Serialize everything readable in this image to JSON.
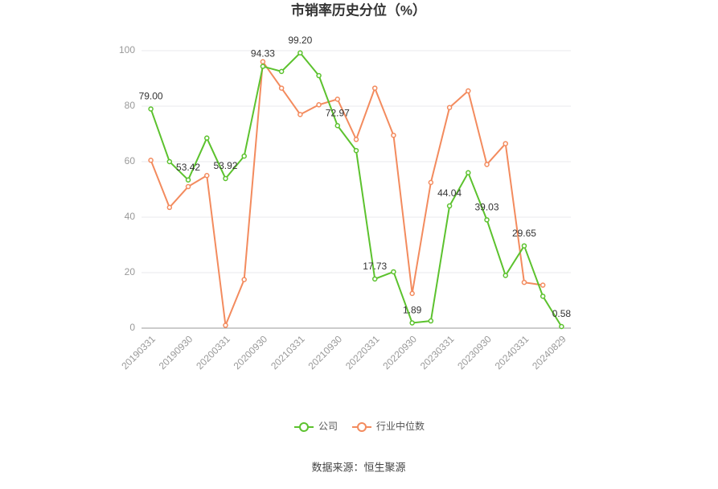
{
  "chart_data": {
    "type": "line",
    "title": "市销率历史分位（%）",
    "categories": [
      "20190331",
      null,
      "20190930",
      null,
      "20200331",
      null,
      "20200930",
      null,
      "20210331",
      null,
      "20210930",
      null,
      "20220331",
      null,
      "20220930",
      null,
      "20230331",
      null,
      "20230930",
      null,
      "20240331",
      null,
      "20240829"
    ],
    "series": [
      {
        "name": "公司",
        "color": "#5cc22e",
        "values": [
          79.0,
          60,
          53.42,
          68.5,
          53.92,
          62,
          94.33,
          92.5,
          99.2,
          91,
          72.97,
          64,
          17.73,
          20.3,
          1.89,
          2.6,
          44.04,
          56,
          39.03,
          19,
          29.65,
          11.5,
          0.58
        ],
        "value_labels": [
          "79.00",
          null,
          "53.42",
          null,
          "53.92",
          null,
          "94.33",
          null,
          "99.20",
          null,
          "72.97",
          null,
          "17.73",
          null,
          "1.89",
          null,
          "44.04",
          null,
          "39.03",
          null,
          "29.65",
          null,
          "0.58"
        ]
      },
      {
        "name": "行业中位数",
        "color": "#f38b5e",
        "values": [
          60.5,
          43.5,
          51,
          55,
          1,
          17.5,
          96,
          86.5,
          77,
          80.5,
          82.5,
          68,
          86.5,
          69.5,
          12.5,
          52.5,
          79.5,
          85.5,
          59,
          66.5,
          16.5,
          15.5,
          null
        ]
      }
    ],
    "ylim": [
      0,
      100
    ],
    "yticks": [
      0,
      20,
      40,
      60,
      80,
      100
    ],
    "grid": true,
    "source": "数据来源：恒生聚源"
  }
}
